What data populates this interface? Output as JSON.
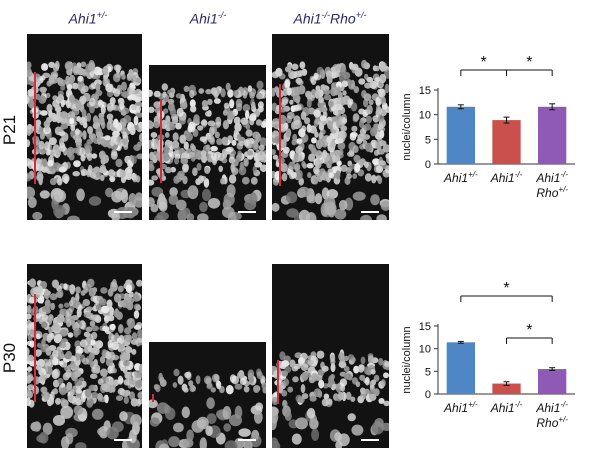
{
  "column_headers": [
    {
      "base": "Ahi1",
      "sup": "+/-"
    },
    {
      "base": "Ahi1",
      "sup": "-/-"
    },
    {
      "base": "Ahi1",
      "sup": "-/-",
      "base2": "Rho",
      "sup2": "+/-"
    }
  ],
  "rows": [
    {
      "label": "P21"
    },
    {
      "label": "P30"
    }
  ],
  "colors": {
    "blue": "#4f86c6",
    "red": "#c9504b",
    "purple": "#8e5ab5",
    "scale_line": "#d1303a"
  },
  "chart_data": [
    {
      "type": "bar",
      "ylabel": "nuclei/column",
      "ylim": [
        0,
        15
      ],
      "yticks": [
        0,
        5,
        10,
        15
      ],
      "categories": [
        {
          "base": "Ahi1",
          "sup": "+/-"
        },
        {
          "base": "Ahi1",
          "sup": "-/-"
        },
        {
          "base": "Ahi1",
          "sup": "-/-",
          "line2_base": "Rho",
          "line2_sup": "+/-"
        }
      ],
      "values": [
        11.6,
        8.9,
        11.6
      ],
      "errors": [
        0.4,
        0.6,
        0.6
      ],
      "significance": [
        {
          "from": 0,
          "to": 2,
          "junction": 1,
          "label": "*"
        },
        {
          "from": 1,
          "to": 2,
          "label": "*"
        }
      ]
    },
    {
      "type": "bar",
      "ylabel": "nuclei/column",
      "ylim": [
        0,
        15
      ],
      "yticks": [
        0,
        5,
        10,
        15
      ],
      "categories": [
        {
          "base": "Ahi1",
          "sup": "+/-"
        },
        {
          "base": "Ahi1",
          "sup": "-/-"
        },
        {
          "base": "Ahi1",
          "sup": "-/-",
          "line2_base": "Rho",
          "line2_sup": "+/-"
        }
      ],
      "values": [
        11.4,
        2.3,
        5.5
      ],
      "errors": [
        0.2,
        0.4,
        0.3
      ],
      "significance": [
        {
          "from": 0,
          "to": 2,
          "label": "*"
        },
        {
          "from": 1,
          "to": 2,
          "label": "*"
        }
      ]
    }
  ]
}
